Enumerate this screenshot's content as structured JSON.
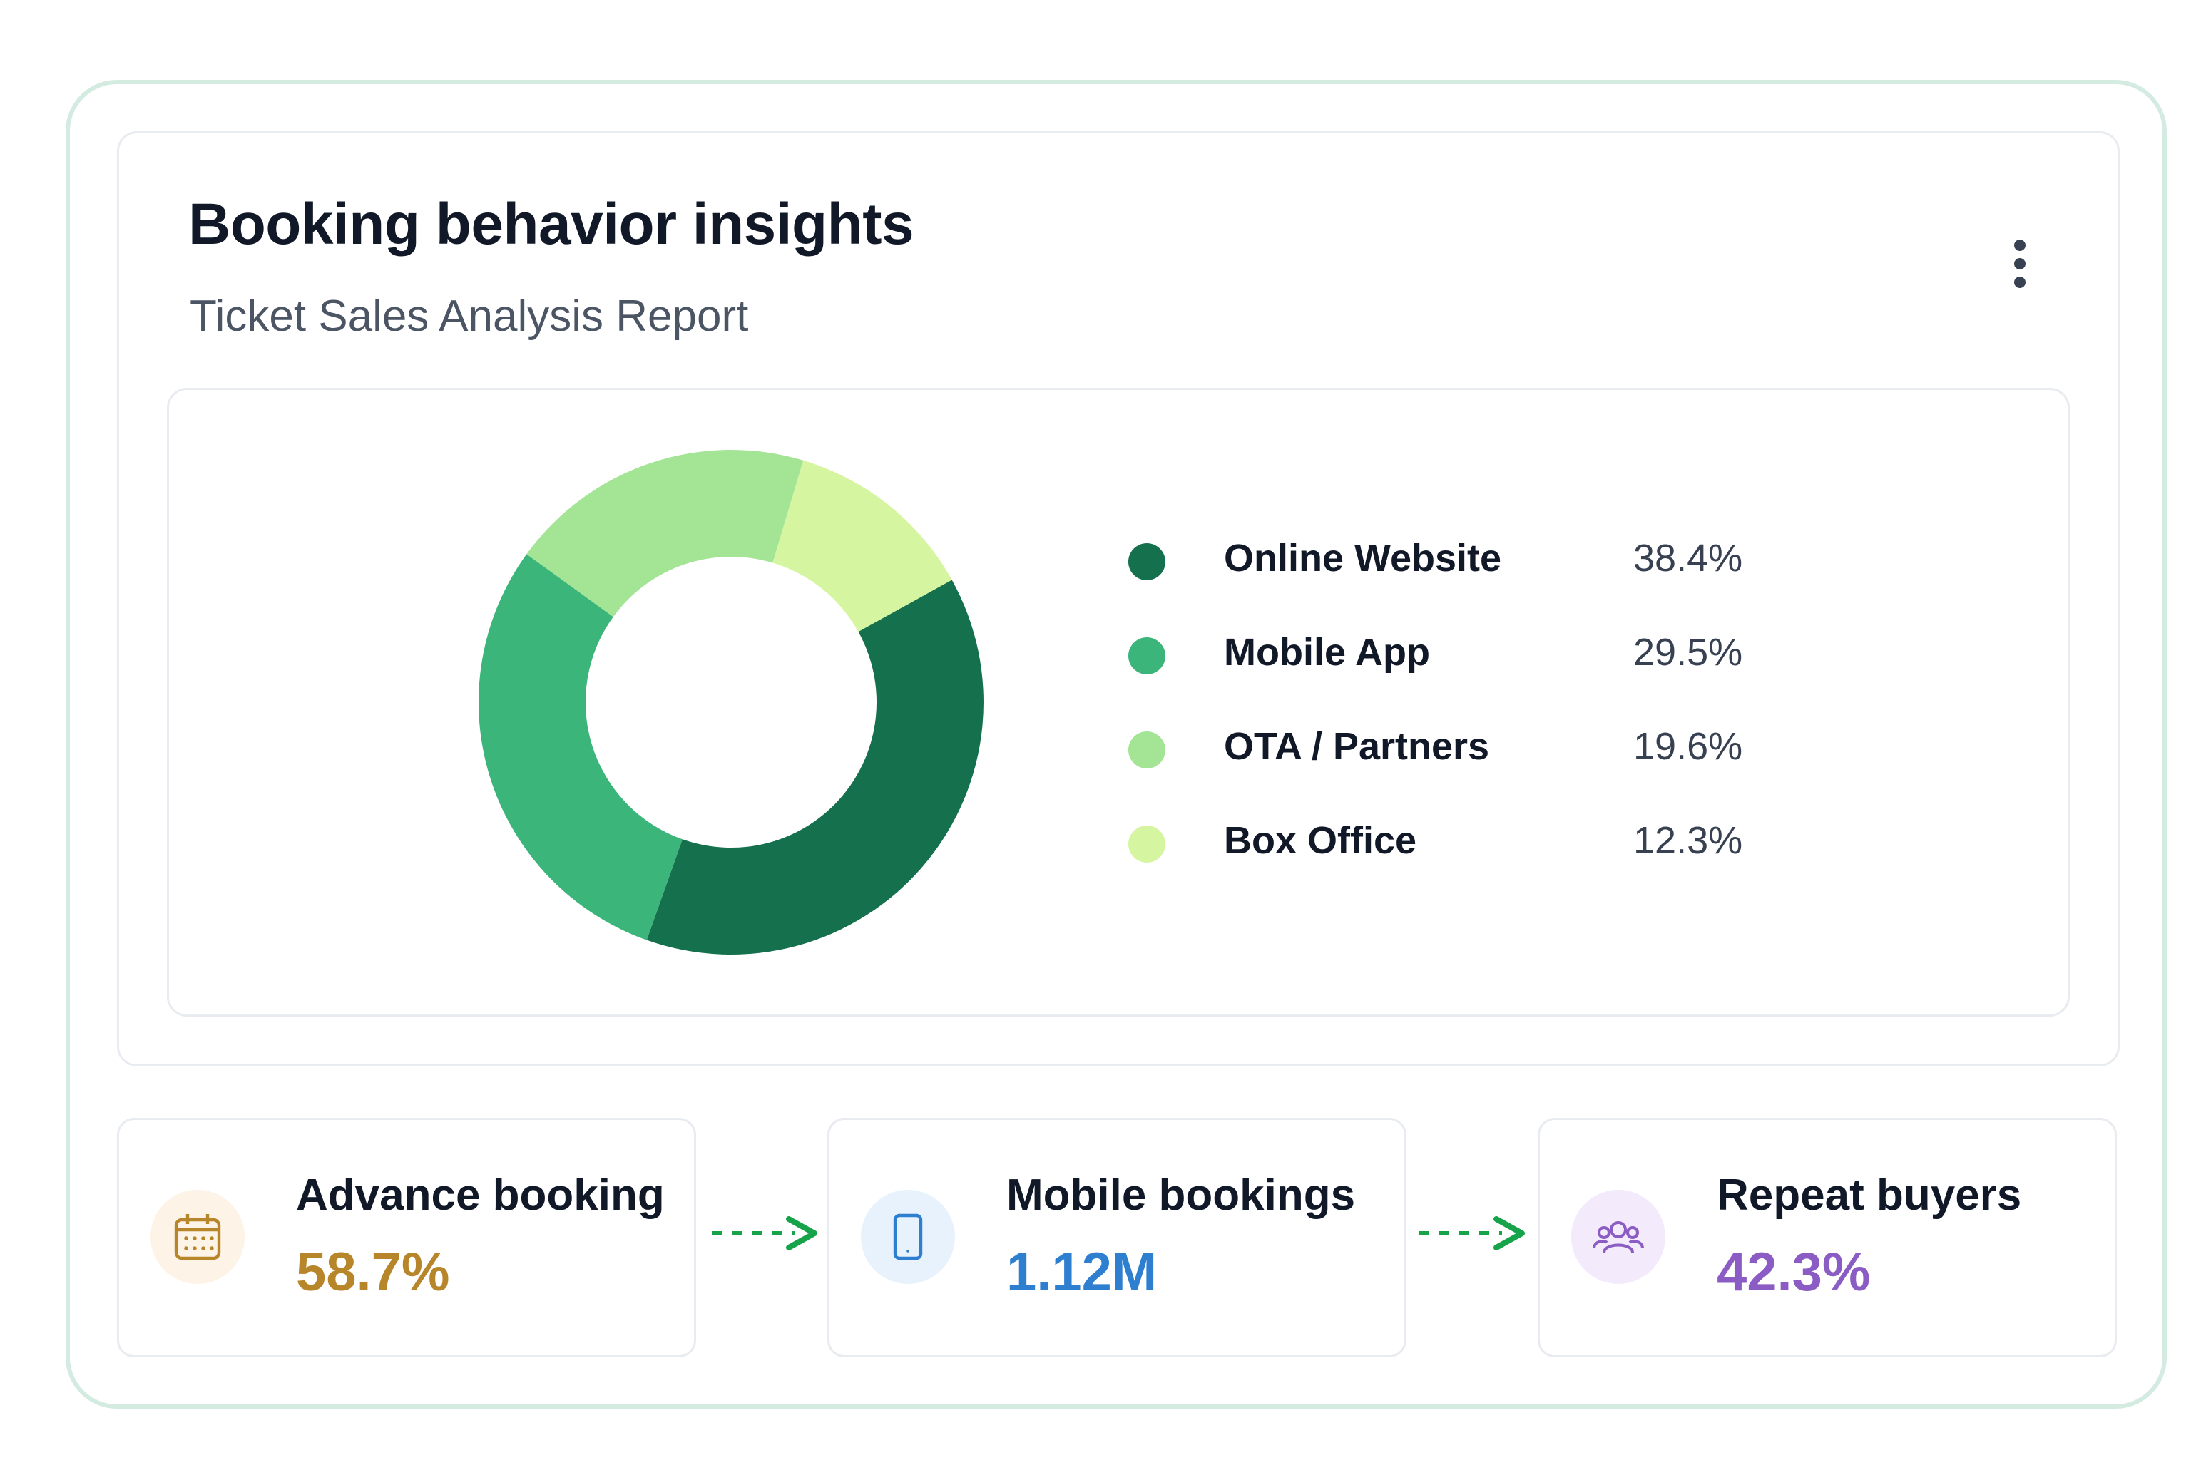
{
  "card": {
    "title": "Booking behavior insights",
    "subtitle": "Ticket Sales Analysis Report"
  },
  "menu": {
    "icon": "more-vertical-icon"
  },
  "chart_data": {
    "type": "pie",
    "categories": [
      "Online Website",
      "Mobile App",
      "OTA / Partners",
      "Box Office"
    ],
    "values": [
      38.4,
      29.5,
      19.6,
      12.3
    ],
    "value_labels": [
      "38.4%",
      "29.5%",
      "19.6%",
      "12.3%"
    ],
    "colors": [
      "#15714d",
      "#3cb57b",
      "#a3e595",
      "#d6f5a0"
    ],
    "donut": true,
    "legend": "right"
  },
  "stats": [
    {
      "label": "Advance booking",
      "value": "58.7%",
      "icon": "calendar-icon",
      "color": "#b8862a",
      "icon_bg": "#fdf3e7"
    },
    {
      "label": "Mobile bookings",
      "value": "1.12M",
      "icon": "tablet-icon",
      "color": "#2f7fd1",
      "icon_bg": "#e8f2fc"
    },
    {
      "label": "Repeat buyers",
      "value": "42.3%",
      "icon": "users-icon",
      "color": "#8b5cc4",
      "icon_bg": "#f3eafb"
    }
  ],
  "colors": {
    "arrow": "#17a34a",
    "frame": "#d4ebe2"
  }
}
